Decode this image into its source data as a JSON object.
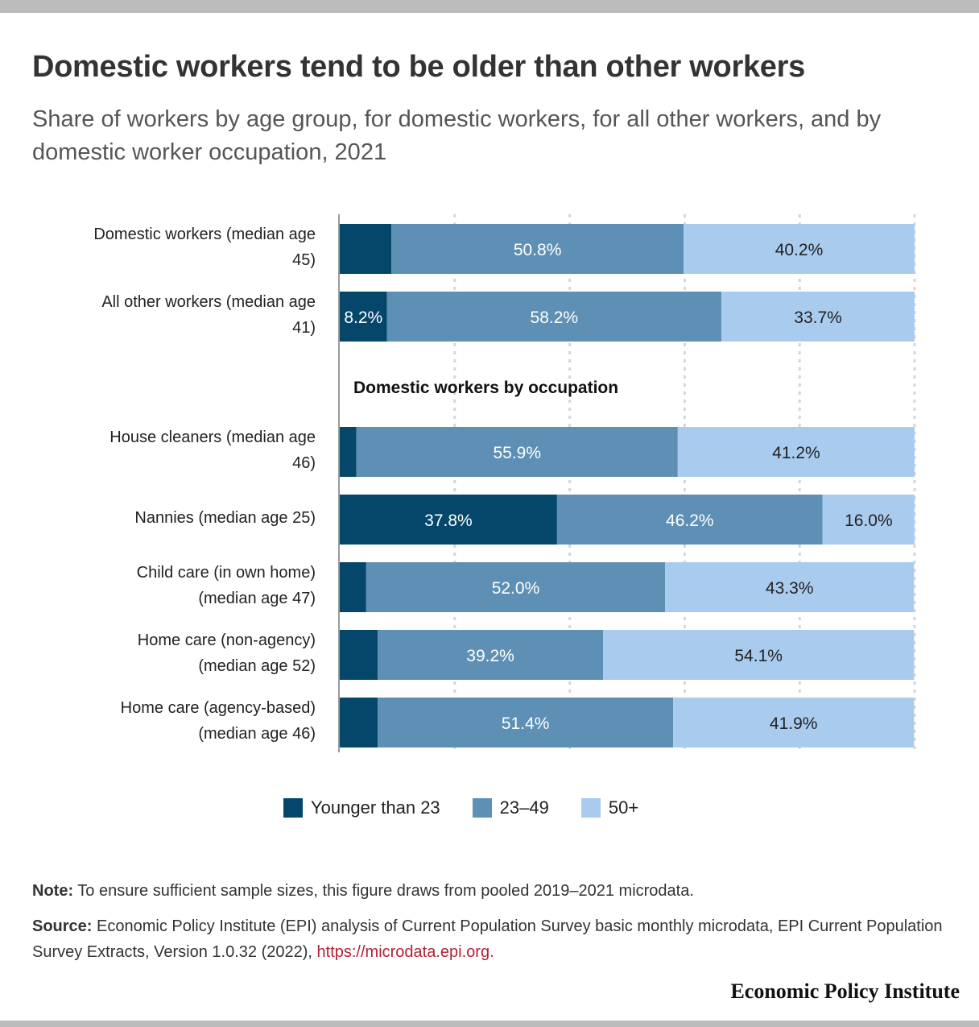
{
  "title": "Domestic workers tend to be older than other workers",
  "subtitle": "Share of workers by age group, for domestic workers, for all other workers, and by domestic worker occupation, 2021",
  "group_heading": "Domestic workers by occupation",
  "colors": {
    "under_23": "#05476b",
    "age_23_49": "#5e90b5",
    "age_50_plus": "#a9cbee",
    "grid": "#d6d6d6",
    "axis": "#9a9a9a",
    "link": "#b22234"
  },
  "chart_data": {
    "type": "bar",
    "orientation": "horizontal",
    "stacked": true,
    "xlim": [
      0,
      100
    ],
    "grid": true,
    "legend_position": "bottom",
    "categories": [
      "Domestic workers (median age 45)",
      "All other workers (median age 41)",
      "House cleaners (median age 46)",
      "Nannies (median age 25)",
      "Child care (in own home) (median age 47)",
      "Home care (non-agency) (median age 52)",
      "Home care (agency-based) (median age 46)"
    ],
    "series": [
      {
        "name": "Younger than 23",
        "values": [
          9.0,
          8.2,
          2.9,
          37.8,
          4.6,
          6.6,
          6.6
        ],
        "labels": [
          "",
          "8.2%",
          "",
          "37.8%",
          "",
          "",
          ""
        ]
      },
      {
        "name": "23–49",
        "values": [
          50.8,
          58.2,
          55.9,
          46.2,
          52.0,
          39.2,
          51.4
        ],
        "labels": [
          "50.8%",
          "58.2%",
          "55.9%",
          "46.2%",
          "52.0%",
          "39.2%",
          "51.4%"
        ]
      },
      {
        "name": "50+",
        "values": [
          40.2,
          33.7,
          41.2,
          16.0,
          43.3,
          54.1,
          41.9
        ],
        "labels": [
          "40.2%",
          "33.7%",
          "41.2%",
          "16.0%",
          "43.3%",
          "54.1%",
          "41.9%"
        ]
      }
    ]
  },
  "rows": [
    {
      "label_line1": "Domestic workers (median age",
      "label_line2": "45)"
    },
    {
      "label_line1": "All other workers (median age",
      "label_line2": "41)"
    },
    {
      "label_line1": "House cleaners (median age",
      "label_line2": "46)"
    },
    {
      "label_line1": "Nannies (median age 25)",
      "label_line2": ""
    },
    {
      "label_line1": "Child care (in own home)",
      "label_line2": "(median age 47)"
    },
    {
      "label_line1": "Home care (non-agency)",
      "label_line2": "(median age 52)"
    },
    {
      "label_line1": "Home care (agency-based)",
      "label_line2": "(median age 46)"
    }
  ],
  "legend": {
    "under_23": "Younger than 23",
    "age_23_49": "23–49",
    "age_50_plus": "50+"
  },
  "note": {
    "label": "Note:",
    "text": " To ensure sufficient sample sizes, this figure draws from pooled 2019–2021 microdata."
  },
  "source": {
    "label": "Source:",
    "text": " Economic Policy Institute (EPI) analysis of Current Population Survey basic monthly microdata, EPI Current Population Survey Extracts, Version 1.0.32 (2022), ",
    "link": "https://microdata.epi.org."
  },
  "brand": "Economic Policy Institute"
}
